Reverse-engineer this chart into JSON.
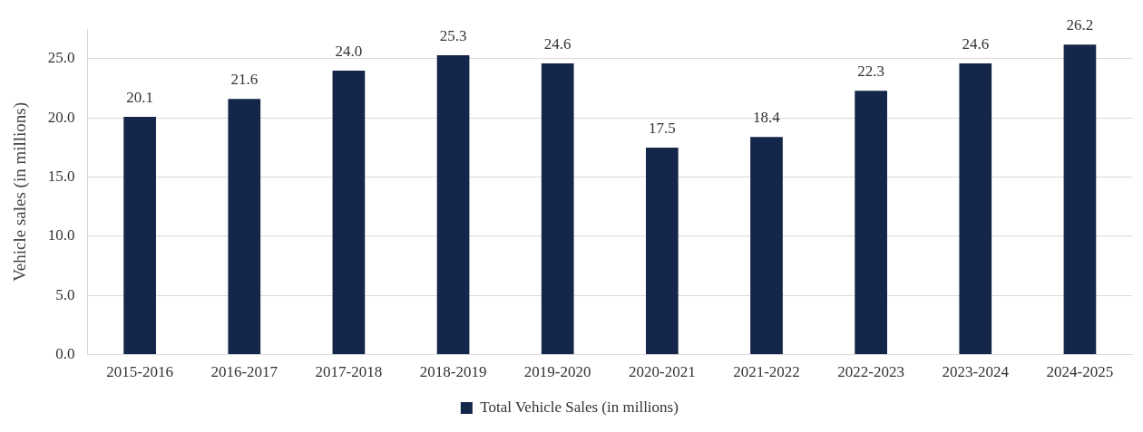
{
  "chart_data": {
    "type": "bar",
    "ylabel": "Vehicle sales (in millions)",
    "categories": [
      "2015-2016",
      "2016-2017",
      "2017-2018",
      "2018-2019",
      "2019-2020",
      "2020-2021",
      "2021-2022",
      "2022-2023",
      "2023-2024",
      "2024-2025"
    ],
    "series": [
      {
        "name": "Total Vehicle Sales (in millions)",
        "color": "#14264a",
        "values": [
          20.1,
          21.6,
          24.0,
          25.3,
          24.6,
          17.5,
          18.4,
          22.3,
          24.6,
          26.2
        ],
        "value_labels": [
          "20.1",
          "21.6",
          "24.0",
          "25.3",
          "24.6",
          "17.5",
          "18.4",
          "22.3",
          "24.6",
          "26.2"
        ]
      }
    ],
    "ylim": [
      0,
      27.5
    ],
    "yticks": [
      {
        "value": 0,
        "label": "0.0"
      },
      {
        "value": 5,
        "label": "5.0"
      },
      {
        "value": 10,
        "label": "10.0"
      },
      {
        "value": 15,
        "label": "15.0"
      },
      {
        "value": 20,
        "label": "20.0"
      },
      {
        "value": 25,
        "label": "25.0"
      }
    ],
    "grid": "y",
    "legend": "bottom"
  }
}
